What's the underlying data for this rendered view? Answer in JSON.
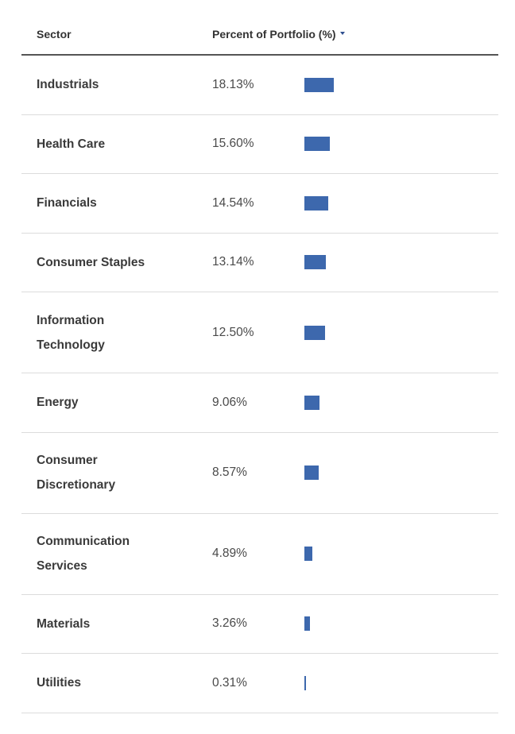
{
  "table": {
    "header": {
      "sector": "Sector",
      "percent": "Percent of Portfolio (%)",
      "sort_icon": "sort-descending-icon"
    },
    "bar_color": "#3d68ad",
    "rows": [
      {
        "sector": "Industrials",
        "value": "18.13%",
        "percent": 18.13
      },
      {
        "sector": "Health Care",
        "value": "15.60%",
        "percent": 15.6
      },
      {
        "sector": "Financials",
        "value": "14.54%",
        "percent": 14.54
      },
      {
        "sector": "Consumer Staples",
        "value": "13.14%",
        "percent": 13.14
      },
      {
        "sector": "Information Technology",
        "value": "12.50%",
        "percent": 12.5
      },
      {
        "sector": "Energy",
        "value": "9.06%",
        "percent": 9.06
      },
      {
        "sector": "Consumer Discretionary",
        "value": "8.57%",
        "percent": 8.57
      },
      {
        "sector": "Communication Services",
        "value": "4.89%",
        "percent": 4.89
      },
      {
        "sector": "Materials",
        "value": "3.26%",
        "percent": 3.26
      },
      {
        "sector": "Utilities",
        "value": "0.31%",
        "percent": 0.31
      }
    ]
  }
}
